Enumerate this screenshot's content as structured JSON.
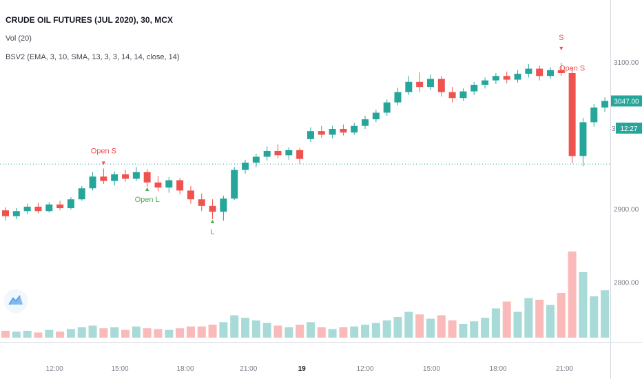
{
  "header": {
    "symbol_title": "CRUDE OIL FUTURES (JUL 2020), 30, MCX",
    "volume_indicator": "Vol (20)",
    "strategy_indicator": "BSV2 (EMA, 3, 10, SMA, 13, 3, 3, 14, 14, close, 14)"
  },
  "colors": {
    "up": "#26a69a",
    "down": "#ef5350",
    "volume_up": "rgba(38,166,154,0.40)",
    "volume_down": "rgba(239,83,80,0.40)",
    "short_marker": "#ef5350",
    "long_marker": "#4caf50",
    "axis_text": "#787b86",
    "date_tick_text": "#131722",
    "badge_bg": "#26a69a",
    "badge_text": "#ffffff",
    "entry_line": "#26a69a",
    "axis_border": "#d6d8e0"
  },
  "price_axis": {
    "ticks": [
      {
        "label": "3100.00",
        "price": 3100
      },
      {
        "label": "2900.00",
        "price": 2900
      },
      {
        "label": "2800.00",
        "price": 2800
      }
    ],
    "last_price_label": "3047.00",
    "last_price": 3047,
    "countdown_label": "12:27",
    "countdown_price": 3010,
    "hidden_label_fragment": "3"
  },
  "time_axis": {
    "ticks": [
      {
        "label": "12:00",
        "index": 4.5
      },
      {
        "label": "15:00",
        "index": 10.5
      },
      {
        "label": "18:00",
        "index": 16.5
      },
      {
        "label": "21:00",
        "index": 22.3
      },
      {
        "label": "19",
        "index": 27.2,
        "date": true
      },
      {
        "label": "12:00",
        "index": 33
      },
      {
        "label": "15:00",
        "index": 39.1
      },
      {
        "label": "18:00",
        "index": 45.2
      },
      {
        "label": "21:00",
        "index": 51.3
      }
    ]
  },
  "annotations": [
    {
      "index": 9,
      "label": "Open S",
      "dir": "short",
      "anchor": "high",
      "marker_dy": -5,
      "text_dy": -22
    },
    {
      "index": 13,
      "label": "Open L",
      "dir": "long",
      "anchor": "low",
      "marker_dy": 6,
      "text_dy": 22
    },
    {
      "index": 19,
      "label": "L",
      "dir": "long",
      "anchor": "low",
      "marker_dy": 6,
      "text_dy": 22
    },
    {
      "index": 51,
      "label": "S",
      "dir": "short",
      "anchor": "high",
      "marker_dy": -18,
      "text_dy": -33
    },
    {
      "index": 52,
      "label": "Open S",
      "dir": "short",
      "anchor": "high",
      "marker_dy": 32,
      "text_dy": 4
    }
  ],
  "chart_data": {
    "type": "candlestick",
    "title": "CRUDE OIL FUTURES (JUL 2020), 30, MCX",
    "interval_minutes": 30,
    "exchange": "MCX",
    "ylim": [
      2718,
      3184.5
    ],
    "entry_line_price": 2961,
    "volume_scale_max": 100,
    "candles_format": [
      "open",
      "high",
      "low",
      "close",
      "volume"
    ],
    "candles": [
      [
        2898,
        2902,
        2884,
        2890,
        8
      ],
      [
        2890,
        2901,
        2886,
        2897,
        7
      ],
      [
        2897,
        2907,
        2893,
        2903,
        8
      ],
      [
        2903,
        2908,
        2894,
        2897,
        6
      ],
      [
        2897,
        2909,
        2895,
        2906,
        9
      ],
      [
        2906,
        2911,
        2898,
        2901,
        7
      ],
      [
        2901,
        2916,
        2899,
        2913,
        10
      ],
      [
        2913,
        2931,
        2911,
        2928,
        12
      ],
      [
        2928,
        2950,
        2925,
        2944,
        14
      ],
      [
        2944,
        2955,
        2934,
        2938,
        11
      ],
      [
        2938,
        2951,
        2932,
        2947,
        12
      ],
      [
        2947,
        2953,
        2937,
        2941,
        9
      ],
      [
        2941,
        2957,
        2938,
        2950,
        13
      ],
      [
        2950,
        2954,
        2930,
        2936,
        11
      ],
      [
        2936,
        2945,
        2924,
        2929,
        10
      ],
      [
        2929,
        2943,
        2922,
        2939,
        9
      ],
      [
        2939,
        2942,
        2920,
        2925,
        11
      ],
      [
        2925,
        2931,
        2907,
        2913,
        13
      ],
      [
        2913,
        2921,
        2897,
        2904,
        13
      ],
      [
        2904,
        2913,
        2886,
        2896,
        15
      ],
      [
        2896,
        2918,
        2884,
        2914,
        18
      ],
      [
        2914,
        2957,
        2912,
        2953,
        26
      ],
      [
        2953,
        2967,
        2948,
        2963,
        23
      ],
      [
        2963,
        2975,
        2957,
        2971,
        20
      ],
      [
        2971,
        2985,
        2966,
        2979,
        17
      ],
      [
        2979,
        2988,
        2969,
        2973,
        14
      ],
      [
        2973,
        2984,
        2967,
        2980,
        12
      ],
      [
        2980,
        2983,
        2961,
        2968,
        15
      ],
      [
        2995,
        3011,
        2991,
        3006,
        18
      ],
      [
        3006,
        3013,
        2997,
        3001,
        12
      ],
      [
        3001,
        3013,
        2996,
        3009,
        10
      ],
      [
        3009,
        3015,
        3000,
        3004,
        12
      ],
      [
        3004,
        3017,
        3001,
        3013,
        13
      ],
      [
        3013,
        3027,
        3009,
        3022,
        15
      ],
      [
        3022,
        3035,
        3018,
        3031,
        17
      ],
      [
        3031,
        3049,
        3027,
        3045,
        20
      ],
      [
        3045,
        3065,
        3041,
        3059,
        24
      ],
      [
        3059,
        3081,
        3055,
        3073,
        30
      ],
      [
        3073,
        3086,
        3059,
        3066,
        27
      ],
      [
        3066,
        3083,
        3062,
        3077,
        22
      ],
      [
        3077,
        3081,
        3053,
        3059,
        26
      ],
      [
        3059,
        3066,
        3045,
        3051,
        20
      ],
      [
        3051,
        3064,
        3047,
        3060,
        16
      ],
      [
        3060,
        3073,
        3055,
        3069,
        19
      ],
      [
        3069,
        3079,
        3064,
        3075,
        23
      ],
      [
        3075,
        3085,
        3070,
        3081,
        34
      ],
      [
        3081,
        3087,
        3071,
        3076,
        42
      ],
      [
        3076,
        3089,
        3072,
        3084,
        30
      ],
      [
        3084,
        3097,
        3079,
        3091,
        46
      ],
      [
        3091,
        3095,
        3075,
        3081,
        44
      ],
      [
        3081,
        3093,
        3077,
        3089,
        38
      ],
      [
        3089,
        3099,
        3081,
        3085,
        52
      ],
      [
        3085,
        3092,
        2962,
        2972,
        100
      ],
      [
        2972,
        3024,
        2958,
        3018,
        76
      ],
      [
        3018,
        3043,
        3012,
        3038,
        48
      ],
      [
        3038,
        3052,
        3032,
        3047,
        55
      ]
    ]
  }
}
